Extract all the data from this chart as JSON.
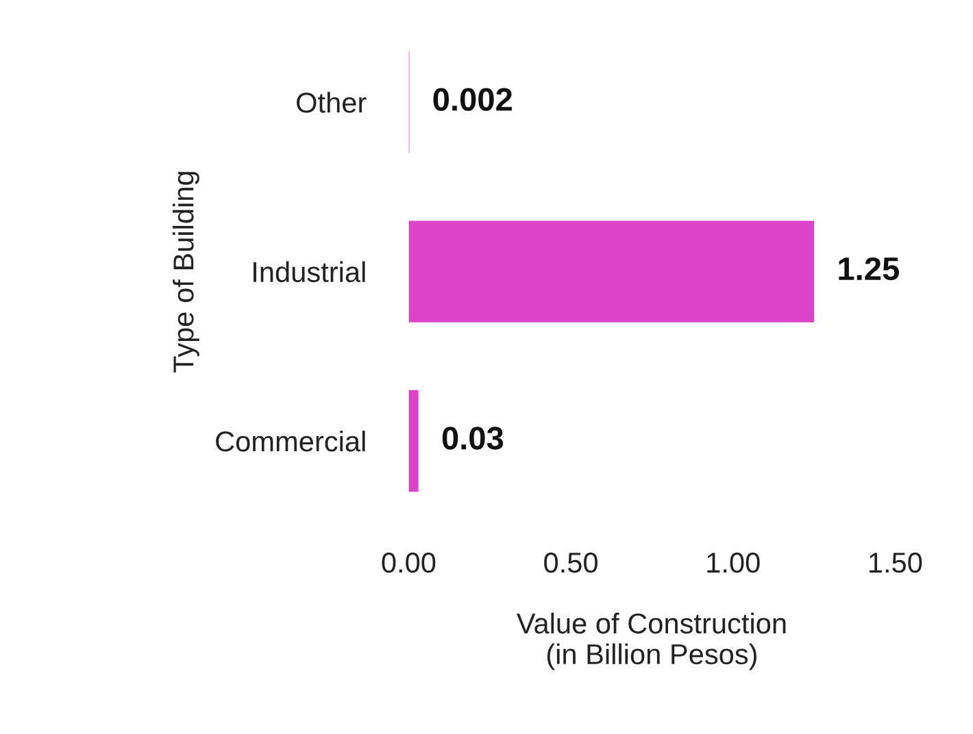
{
  "chart_data": {
    "type": "bar",
    "orientation": "horizontal",
    "categories": [
      "Other",
      "Industrial",
      "Commercial"
    ],
    "values": [
      0.002,
      1.25,
      0.03
    ],
    "color": "#dc44c8",
    "xlim": [
      0,
      1.5
    ],
    "xticks": [
      {
        "value": 0,
        "label": "0.00"
      },
      {
        "value": 0.5,
        "label": "0.50"
      },
      {
        "value": 1.0,
        "label": "1.00"
      },
      {
        "value": 1.5,
        "label": "1.50"
      }
    ],
    "xlabel": "Value of Construction\n(in Billion Pesos)",
    "ylabel": "Type of Building",
    "data_labels": true,
    "grid": false
  }
}
